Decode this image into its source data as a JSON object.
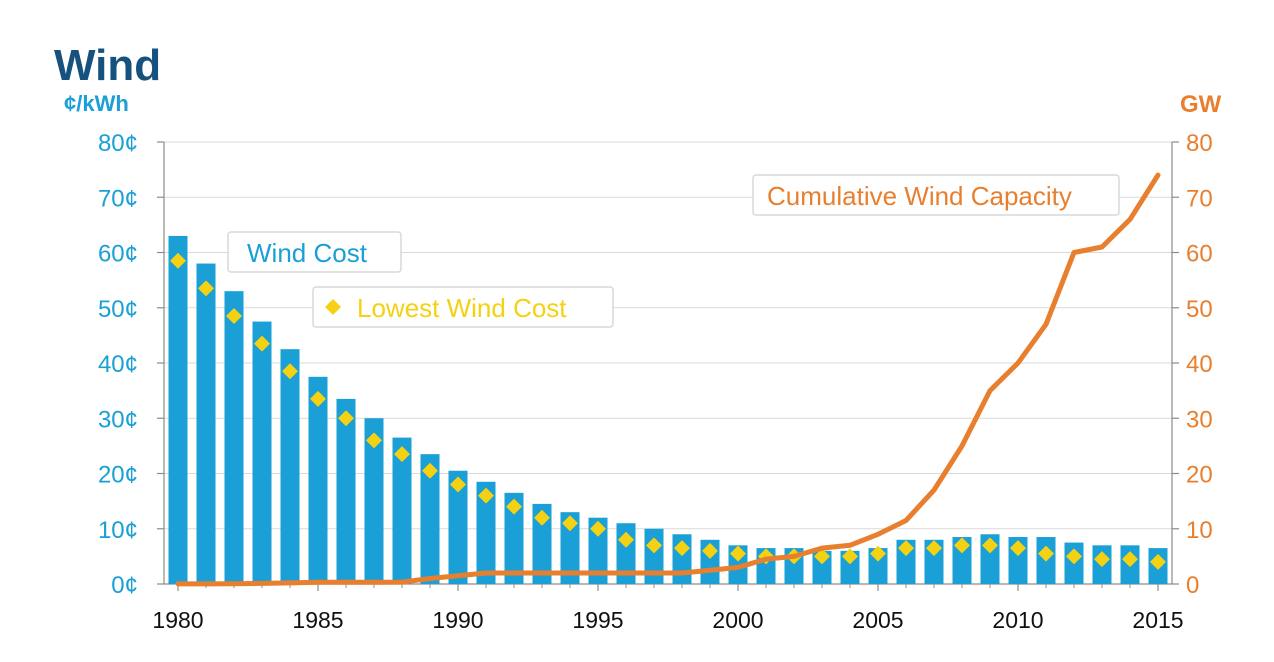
{
  "chart_data": {
    "type": "bar+line",
    "title": "Wind",
    "colors": {
      "bar": "#1a9fd6",
      "lowest_marker": "#f5d114",
      "line": "#e87f2e",
      "title": "#17527f",
      "axis_x": "#111111"
    },
    "left_axis": {
      "unit_label": "¢/kWh",
      "ylim": [
        0,
        80
      ],
      "ticks": [
        "0¢",
        "10¢",
        "20¢",
        "30¢",
        "40¢",
        "50¢",
        "60¢",
        "70¢",
        "80¢"
      ]
    },
    "right_axis": {
      "unit_label": "GW",
      "ylim": [
        0,
        80
      ],
      "ticks": [
        "0",
        "10",
        "20",
        "30",
        "40",
        "50",
        "60",
        "70",
        "80"
      ]
    },
    "x_axis": {
      "tick_labels": [
        "1980",
        "1985",
        "1990",
        "1995",
        "2000",
        "2005",
        "2010",
        "2015"
      ]
    },
    "years": [
      1980,
      1981,
      1982,
      1983,
      1984,
      1985,
      1986,
      1987,
      1988,
      1989,
      1990,
      1991,
      1992,
      1993,
      1994,
      1995,
      1996,
      1997,
      1998,
      1999,
      2000,
      2001,
      2002,
      2003,
      2004,
      2005,
      2006,
      2007,
      2008,
      2009,
      2010,
      2011,
      2012,
      2013,
      2014,
      2015
    ],
    "series": [
      {
        "name": "Wind Cost",
        "kind": "bar",
        "axis": "left",
        "values": [
          63,
          58,
          53,
          47.5,
          42.5,
          37.5,
          33.5,
          30,
          26.5,
          23.5,
          20.5,
          18.5,
          16.5,
          14.5,
          13,
          12,
          11,
          10,
          9,
          8,
          7,
          6.5,
          6.5,
          6,
          6,
          6.5,
          8,
          8,
          8.5,
          9,
          8.5,
          8.5,
          7.5,
          7,
          7,
          6.5
        ]
      },
      {
        "name": "Lowest Wind Cost",
        "kind": "marker",
        "axis": "left",
        "values": [
          58.5,
          53.5,
          48.5,
          43.5,
          38.5,
          33.5,
          30,
          26,
          23.5,
          20.5,
          18,
          16,
          14,
          12,
          11,
          10,
          8,
          7,
          6.5,
          6,
          5.5,
          5,
          5,
          5,
          5,
          5.5,
          6.5,
          6.5,
          7,
          7,
          6.5,
          5.5,
          5,
          4.5,
          4.5,
          4
        ]
      },
      {
        "name": "Cumulative Wind Capacity",
        "kind": "line",
        "axis": "right",
        "values": [
          0.01,
          0.02,
          0.05,
          0.1,
          0.2,
          0.3,
          0.3,
          0.3,
          0.35,
          1,
          1.5,
          2,
          2,
          2,
          2,
          2,
          2,
          2,
          2,
          2.5,
          3,
          4.5,
          5,
          6.5,
          7,
          9,
          11.5,
          17,
          25,
          35,
          40,
          47,
          60,
          61,
          66,
          74
        ]
      }
    ],
    "legend": {
      "wind_cost": "Wind Cost",
      "lowest_wind_cost": "Lowest Wind Cost",
      "cumulative_capacity": "Cumulative Wind Capacity"
    }
  }
}
